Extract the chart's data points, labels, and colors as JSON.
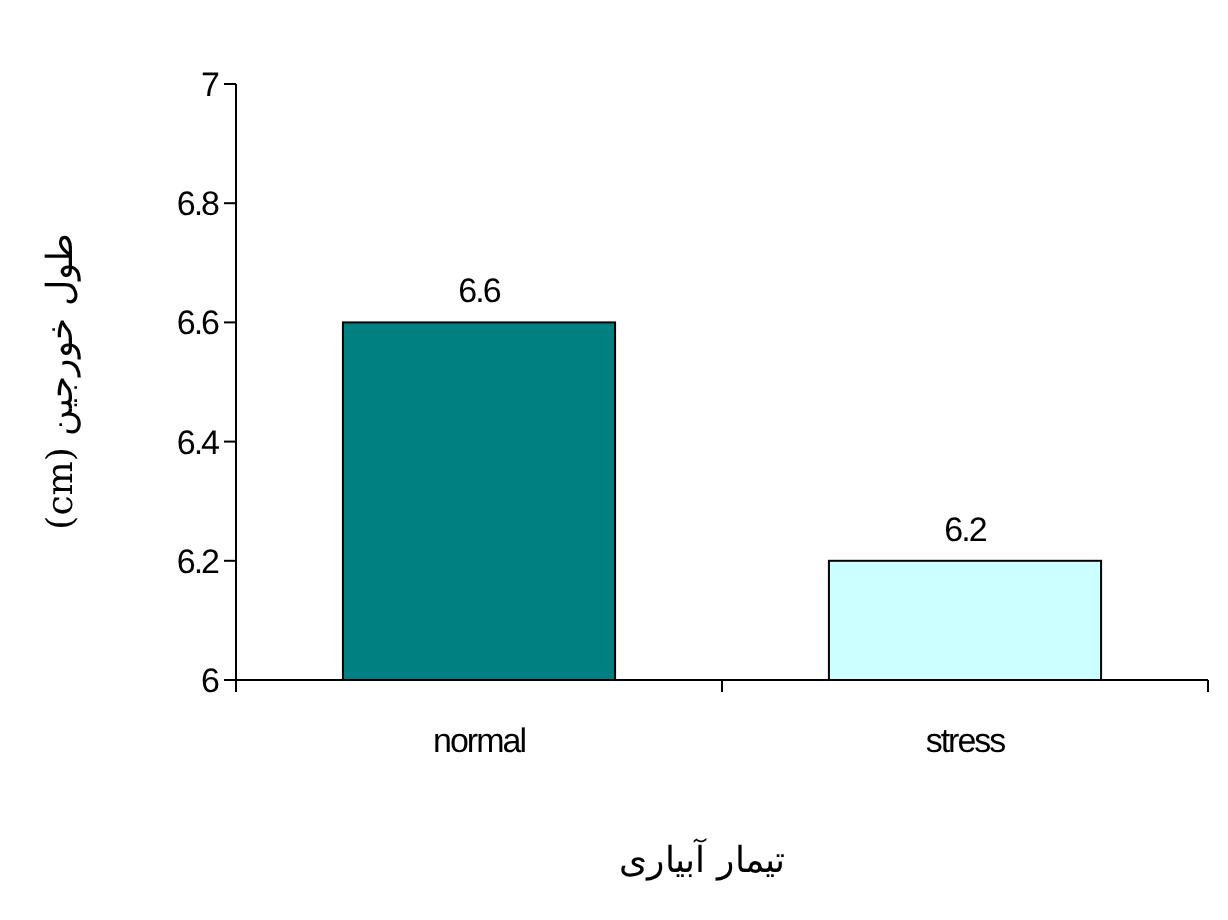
{
  "chart_data": {
    "type": "bar",
    "xlabel": "تیمار آبیاری",
    "ylabel": "طول خورجین (cm)",
    "categories": [
      "normal",
      "stress"
    ],
    "values": [
      6.6,
      6.2
    ],
    "colors": [
      "#008080",
      "#ccffff"
    ],
    "ylim": [
      6,
      7
    ],
    "yticks": [
      6,
      6.2,
      6.4,
      6.6,
      6.8,
      7
    ],
    "data_labels": true
  }
}
